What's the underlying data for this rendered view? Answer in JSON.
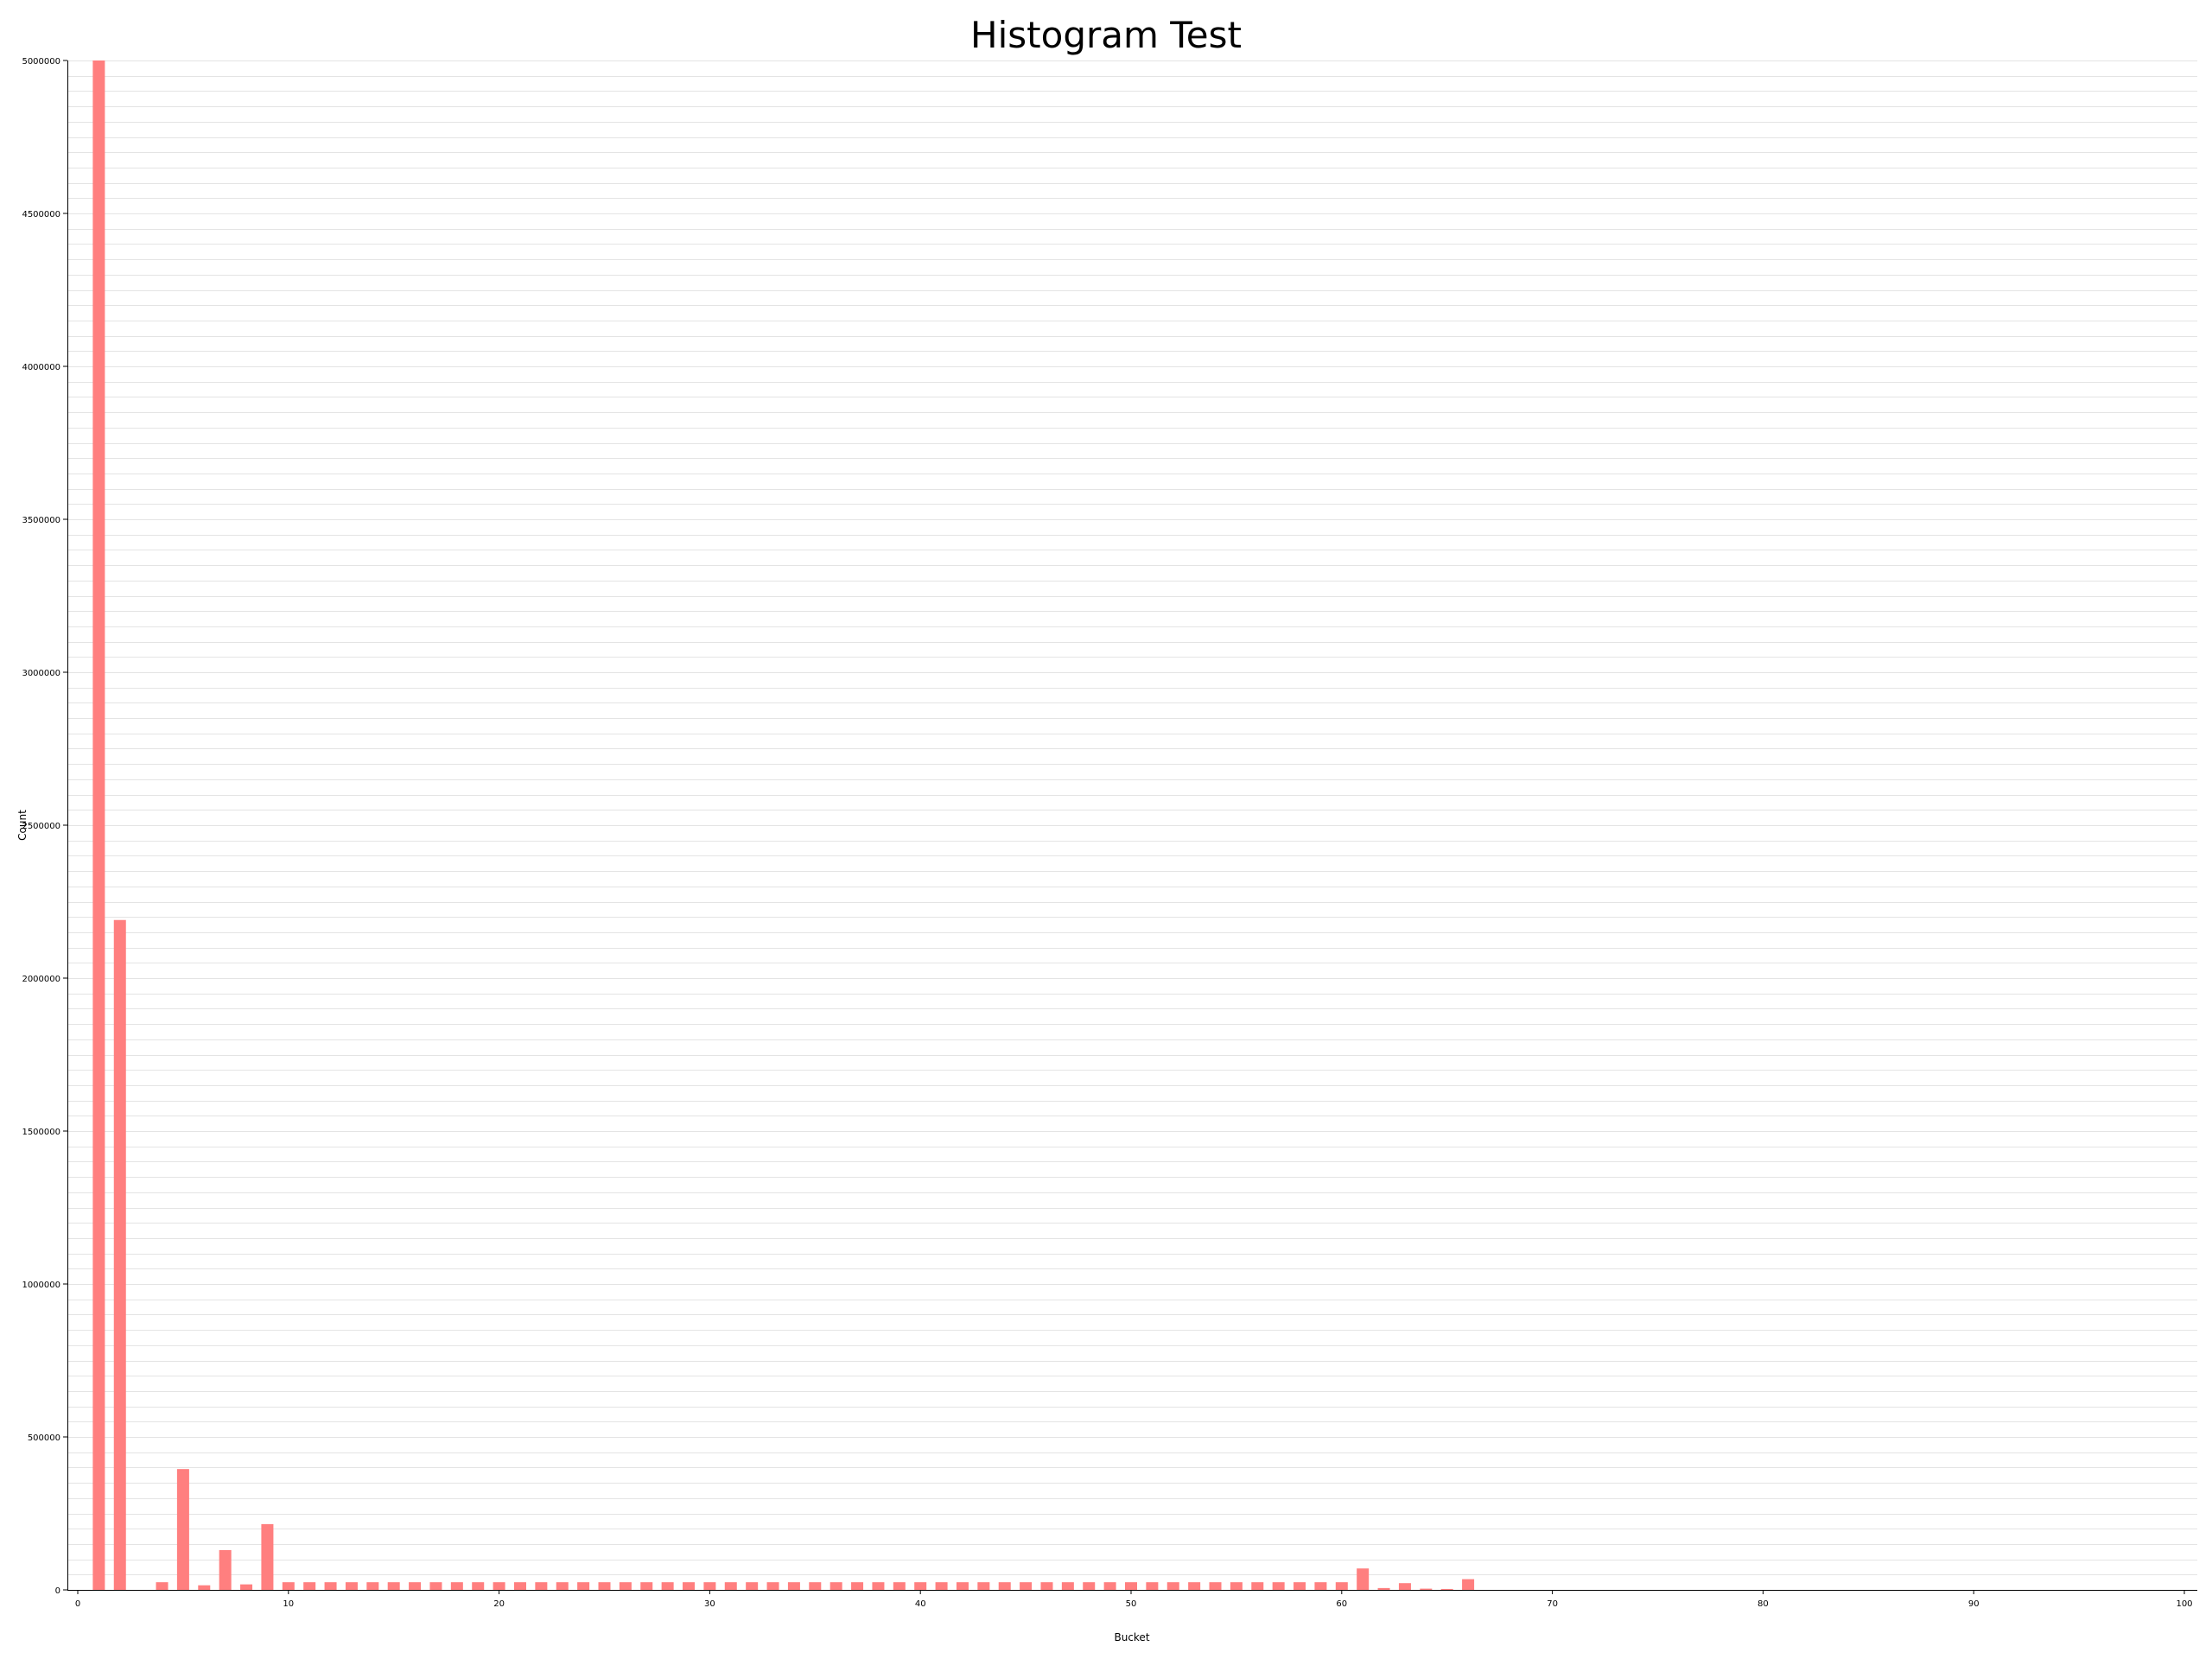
{
  "chart_data": {
    "type": "bar",
    "title": "Histogram Test",
    "xlabel": "Bucket",
    "ylabel": "Count",
    "xlim": [
      0,
      100
    ],
    "ylim": [
      0,
      5000000
    ],
    "x_ticks": [
      "0",
      "10",
      "20",
      "30",
      "40",
      "50",
      "60",
      "70",
      "80",
      "90",
      "100"
    ],
    "y_ticks": [
      "500000",
      "1000000",
      "1500000",
      "2000000",
      "2500000",
      "3000000",
      "3500000",
      "4000000",
      "4500000",
      "5000000"
    ],
    "grid": true,
    "bar_color": "#ff7f7f",
    "x": [
      1,
      2,
      3,
      4,
      5,
      6,
      7,
      8,
      9,
      10,
      11,
      12,
      13,
      14,
      15,
      16,
      17,
      18,
      19,
      20,
      21,
      22,
      23,
      24,
      25,
      26,
      27,
      28,
      29,
      30,
      31,
      32,
      33,
      34,
      35,
      36,
      37,
      38,
      39,
      40,
      41,
      42,
      43,
      44,
      45,
      46,
      47,
      48,
      49,
      50,
      51,
      52,
      53,
      54,
      55,
      56,
      57,
      58,
      59,
      60,
      61,
      62,
      63,
      64,
      65,
      66
    ],
    "values": [
      5000000,
      2190000,
      0,
      25000,
      395000,
      15000,
      130000,
      18000,
      215000,
      25000,
      25000,
      25000,
      25000,
      25000,
      25000,
      25000,
      25000,
      25000,
      25000,
      25000,
      25000,
      25000,
      25000,
      25000,
      25000,
      25000,
      25000,
      25000,
      25000,
      25000,
      25000,
      25000,
      25000,
      25000,
      25000,
      25000,
      25000,
      25000,
      25000,
      25000,
      25000,
      25000,
      25000,
      25000,
      25000,
      25000,
      25000,
      25000,
      25000,
      25000,
      25000,
      25000,
      25000,
      25000,
      25000,
      25000,
      25000,
      25000,
      25000,
      25000,
      70000,
      6000,
      22000,
      4000,
      3000,
      35000
    ]
  }
}
